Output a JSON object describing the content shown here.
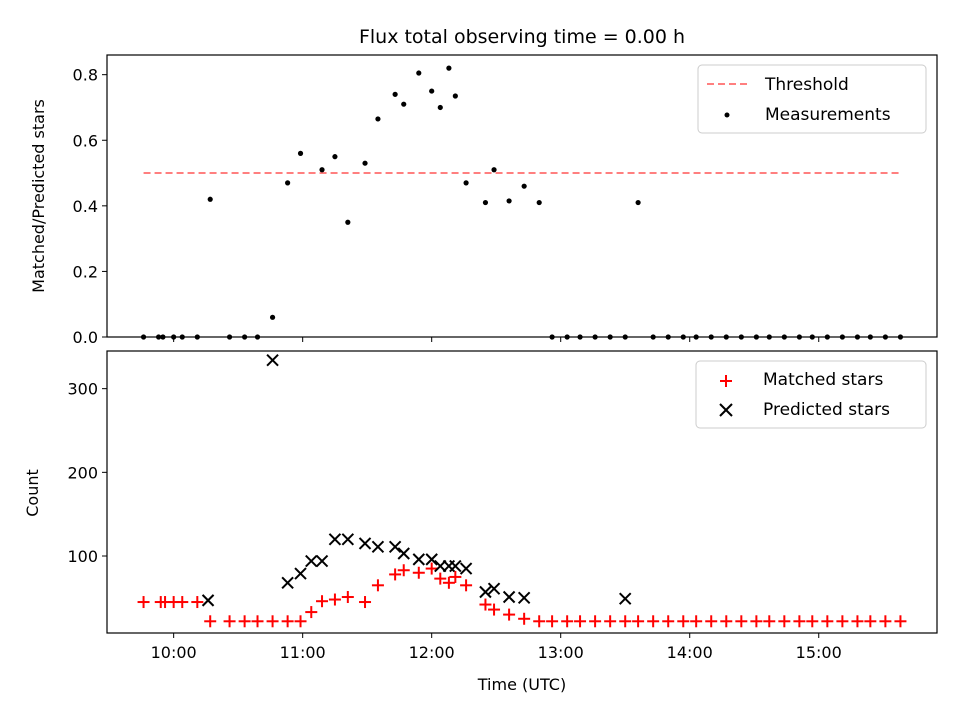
{
  "title": "Flux total observing time = 0.00 h",
  "chart_data": [
    {
      "type": "scatter",
      "ylabel": "Matched/Predicted stars",
      "ylim": [
        0.0,
        0.86
      ],
      "yticks": [
        0.0,
        0.2,
        0.4,
        0.6,
        0.8
      ],
      "ytick_labels": [
        "0.0",
        "0.2",
        "0.4",
        "0.6",
        "0.8"
      ],
      "legend_position": "upper right",
      "threshold": {
        "name": "Threshold",
        "value": 0.5,
        "color": "#ff7f7f",
        "style": "dashed"
      },
      "series": [
        {
          "name": "Measurements",
          "color": "#000000",
          "marker": "dot",
          "x": [
            "09:46",
            "09:53",
            "09:55",
            "10:00",
            "10:04",
            "10:11",
            "10:17",
            "10:26",
            "10:33",
            "10:39",
            "10:46",
            "10:53",
            "10:59",
            "11:09",
            "11:15",
            "11:21",
            "11:29",
            "11:35",
            "11:43",
            "11:47",
            "11:54",
            "12:00",
            "12:04",
            "12:08",
            "12:11",
            "12:16",
            "12:25",
            "12:29",
            "12:36",
            "12:43",
            "12:50",
            "12:56",
            "13:03",
            "13:09",
            "13:16",
            "13:23",
            "13:30",
            "13:36",
            "13:43",
            "13:50",
            "13:57",
            "14:03",
            "14:10",
            "14:17",
            "14:24",
            "14:31",
            "14:37",
            "14:44",
            "14:51",
            "14:57",
            "15:04",
            "15:11",
            "15:18",
            "15:24",
            "15:31",
            "15:38"
          ],
          "y": [
            0.0,
            0.0,
            0.0,
            0.0,
            0.0,
            0.0,
            0.42,
            0.0,
            0.0,
            0.0,
            0.06,
            0.47,
            0.56,
            0.51,
            0.55,
            0.35,
            0.53,
            0.665,
            0.74,
            0.71,
            0.805,
            0.75,
            0.7,
            0.82,
            0.735,
            0.47,
            0.41,
            0.51,
            0.415,
            0.46,
            0.41,
            0.0,
            0.0,
            0.0,
            0.0,
            0.0,
            0.0,
            0.41,
            0.0,
            0.0,
            0.0,
            0.0,
            0.0,
            0.0,
            0.0,
            0.0,
            0.0,
            0.0,
            0.0,
            0.0,
            0.0,
            0.0,
            0.0,
            0.0,
            0.0,
            0.0
          ]
        }
      ]
    },
    {
      "type": "scatter",
      "xlabel": "Time (UTC)",
      "ylabel": "Count",
      "xlim": [
        "09:29",
        "15:55"
      ],
      "xticks": [
        "10:00",
        "11:00",
        "12:00",
        "13:00",
        "14:00",
        "15:00"
      ],
      "ylim": [
        8,
        345
      ],
      "yticks": [
        100,
        200,
        300
      ],
      "ytick_labels": [
        "100",
        "200",
        "300"
      ],
      "legend_position": "upper right",
      "series": [
        {
          "name": "Matched stars",
          "color": "#ff0000",
          "marker": "plus",
          "x": [
            "09:46",
            "09:54",
            "09:56",
            "10:00",
            "10:04",
            "10:11",
            "10:17",
            "10:26",
            "10:33",
            "10:39",
            "10:46",
            "10:53",
            "10:59",
            "11:04",
            "11:09",
            "11:15",
            "11:21",
            "11:29",
            "11:35",
            "11:43",
            "11:47",
            "11:54",
            "12:00",
            "12:04",
            "12:08",
            "12:11",
            "12:16",
            "12:25",
            "12:29",
            "12:36",
            "12:43",
            "12:50",
            "12:56",
            "13:03",
            "13:09",
            "13:16",
            "13:23",
            "13:30",
            "13:36",
            "13:43",
            "13:50",
            "13:57",
            "14:03",
            "14:10",
            "14:17",
            "14:24",
            "14:31",
            "14:37",
            "14:44",
            "14:51",
            "14:57",
            "15:04",
            "15:11",
            "15:18",
            "15:24",
            "15:31",
            "15:38"
          ],
          "y": [
            45,
            45,
            45,
            45,
            45,
            45,
            22,
            22,
            22,
            22,
            22,
            22,
            22,
            33,
            46,
            48,
            51,
            45,
            65,
            78,
            83,
            80,
            85,
            73,
            68,
            75,
            65,
            42,
            36,
            30,
            25,
            22,
            22,
            22,
            22,
            22,
            22,
            22,
            22,
            22,
            22,
            22,
            22,
            22,
            22,
            22,
            22,
            22,
            22,
            22,
            22,
            22,
            22,
            22,
            22,
            22,
            22
          ]
        },
        {
          "name": "Predicted stars",
          "color": "#000000",
          "marker": "x",
          "x": [
            "10:16",
            "10:46",
            "10:53",
            "10:59",
            "11:04",
            "11:09",
            "11:15",
            "11:21",
            "11:29",
            "11:35",
            "11:43",
            "11:47",
            "11:54",
            "12:00",
            "12:04",
            "12:08",
            "12:11",
            "12:16",
            "12:25",
            "12:29",
            "12:36",
            "12:43",
            "13:30"
          ],
          "y": [
            47,
            334,
            68,
            79,
            94,
            94,
            120,
            120,
            115,
            111,
            111,
            103,
            96,
            96,
            88,
            88,
            88,
            85,
            57,
            61,
            51,
            50,
            49
          ]
        }
      ]
    }
  ]
}
